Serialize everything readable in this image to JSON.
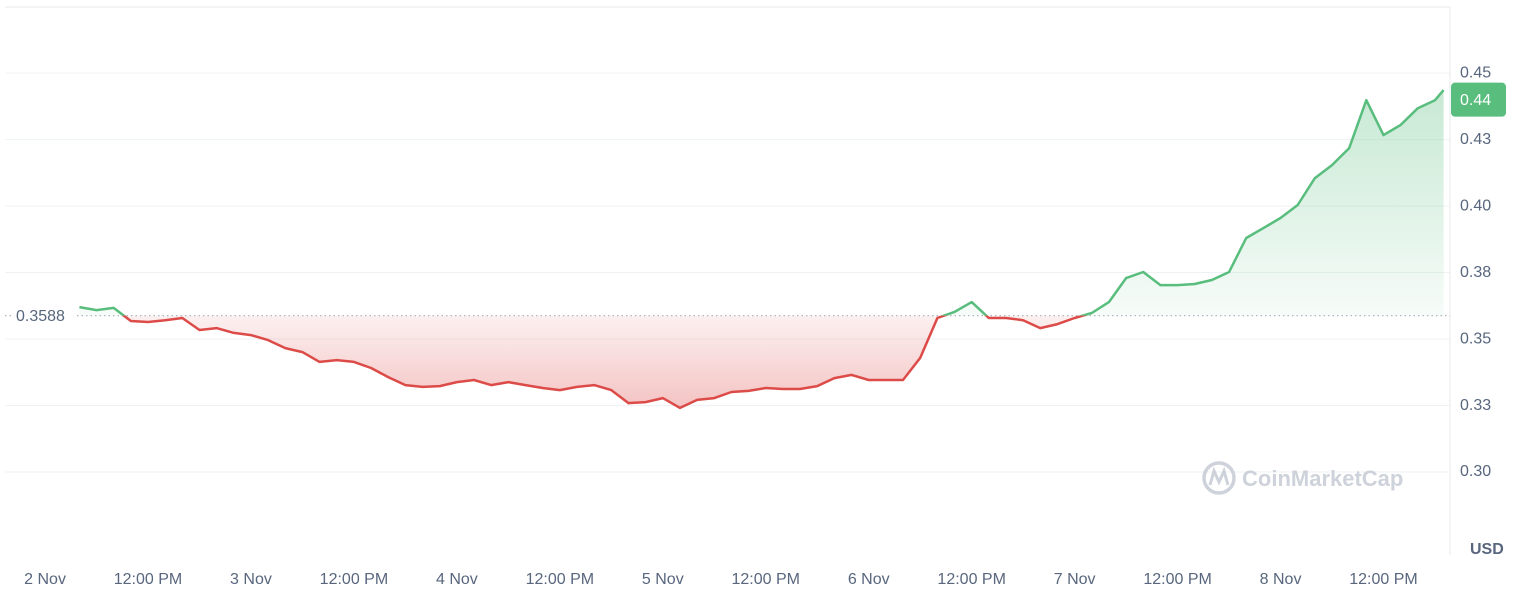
{
  "chart_data": {
    "type": "line",
    "x": [
      "2 Nov 04:00",
      "2 Nov 06:00",
      "2 Nov 08:00",
      "2 Nov 10:00",
      "2 Nov 12:00",
      "2 Nov 14:00",
      "2 Nov 16:00",
      "2 Nov 18:00",
      "2 Nov 20:00",
      "2 Nov 22:00",
      "3 Nov 00:00",
      "3 Nov 02:00",
      "3 Nov 04:00",
      "3 Nov 06:00",
      "3 Nov 08:00",
      "3 Nov 10:00",
      "3 Nov 12:00",
      "3 Nov 14:00",
      "3 Nov 16:00",
      "3 Nov 18:00",
      "3 Nov 20:00",
      "3 Nov 22:00",
      "4 Nov 00:00",
      "4 Nov 02:00",
      "4 Nov 04:00",
      "4 Nov 06:00",
      "4 Nov 08:00",
      "4 Nov 10:00",
      "4 Nov 12:00",
      "4 Nov 14:00",
      "4 Nov 16:00",
      "4 Nov 18:00",
      "4 Nov 20:00",
      "4 Nov 22:00",
      "5 Nov 00:00",
      "5 Nov 02:00",
      "5 Nov 04:00",
      "5 Nov 06:00",
      "5 Nov 08:00",
      "5 Nov 10:00",
      "5 Nov 12:00",
      "5 Nov 14:00",
      "5 Nov 16:00",
      "5 Nov 18:00",
      "5 Nov 20:00",
      "5 Nov 22:00",
      "6 Nov 00:00",
      "6 Nov 02:00",
      "6 Nov 04:00",
      "6 Nov 06:00",
      "6 Nov 08:00",
      "6 Nov 10:00",
      "6 Nov 12:00",
      "6 Nov 14:00",
      "6 Nov 16:00",
      "6 Nov 18:00",
      "6 Nov 20:00",
      "6 Nov 22:00",
      "7 Nov 00:00",
      "7 Nov 02:00",
      "7 Nov 04:00",
      "7 Nov 06:00",
      "7 Nov 08:00",
      "7 Nov 10:00",
      "7 Nov 12:00",
      "7 Nov 14:00",
      "7 Nov 16:00",
      "7 Nov 18:00",
      "7 Nov 20:00",
      "7 Nov 22:00",
      "8 Nov 00:00",
      "8 Nov 02:00",
      "8 Nov 04:00",
      "8 Nov 06:00",
      "8 Nov 08:00",
      "8 Nov 10:00",
      "8 Nov 12:00",
      "8 Nov 14:00",
      "8 Nov 16:00",
      "8 Nov 18:00",
      "8 Nov 19:00"
    ],
    "values": [
      0.362,
      0.3609,
      0.3617,
      0.3568,
      0.3564,
      0.3571,
      0.3579,
      0.3534,
      0.3541,
      0.3523,
      0.3515,
      0.3496,
      0.3466,
      0.3451,
      0.3414,
      0.3421,
      0.3414,
      0.3391,
      0.3357,
      0.3327,
      0.332,
      0.3323,
      0.3338,
      0.3346,
      0.3327,
      0.3338,
      0.3327,
      0.3316,
      0.3308,
      0.332,
      0.3327,
      0.3308,
      0.3259,
      0.3263,
      0.3278,
      0.3241,
      0.3271,
      0.3278,
      0.3301,
      0.3305,
      0.3316,
      0.3312,
      0.3312,
      0.3323,
      0.3353,
      0.3365,
      0.3346,
      0.3346,
      0.3346,
      0.3429,
      0.3579,
      0.3602,
      0.3639,
      0.3579,
      0.3579,
      0.3571,
      0.3541,
      0.3556,
      0.3579,
      0.3598,
      0.3639,
      0.3729,
      0.3752,
      0.3703,
      0.3703,
      0.3707,
      0.3722,
      0.3752,
      0.388,
      0.3917,
      0.3955,
      0.4004,
      0.4105,
      0.4154,
      0.4218,
      0.4398,
      0.4267,
      0.4305,
      0.4368,
      0.4398,
      0.4436
    ],
    "xlim": [
      "1 Nov 19:20",
      "8 Nov 19:45"
    ],
    "xticks": [
      {
        "value": "2 Nov 00:00",
        "label": "2 Nov"
      },
      {
        "value": "2 Nov 12:00",
        "label": "12:00 PM"
      },
      {
        "value": "3 Nov 00:00",
        "label": "3 Nov"
      },
      {
        "value": "3 Nov 12:00",
        "label": "12:00 PM"
      },
      {
        "value": "4 Nov 00:00",
        "label": "4 Nov"
      },
      {
        "value": "4 Nov 12:00",
        "label": "12:00 PM"
      },
      {
        "value": "5 Nov 00:00",
        "label": "5 Nov"
      },
      {
        "value": "5 Nov 12:00",
        "label": "12:00 PM"
      },
      {
        "value": "6 Nov 00:00",
        "label": "6 Nov"
      },
      {
        "value": "6 Nov 12:00",
        "label": "12:00 PM"
      },
      {
        "value": "7 Nov 00:00",
        "label": "7 Nov"
      },
      {
        "value": "7 Nov 12:00",
        "label": "12:00 PM"
      },
      {
        "value": "8 Nov 00:00",
        "label": "8 Nov"
      },
      {
        "value": "8 Nov 12:00",
        "label": "12:00 PM"
      }
    ],
    "ylim": [
      0.2688,
      0.4756
    ],
    "yticks": [
      {
        "value": 0.3,
        "label": "0.30"
      },
      {
        "value": 0.325,
        "label": "0.33"
      },
      {
        "value": 0.35,
        "label": "0.35"
      },
      {
        "value": 0.375,
        "label": "0.38"
      },
      {
        "value": 0.4,
        "label": "0.40"
      },
      {
        "value": 0.425,
        "label": "0.43"
      },
      {
        "value": 0.45,
        "label": "0.45"
      }
    ],
    "grid": true,
    "baseline": 0.3588,
    "last_price": 0.44,
    "up_color": "#58bd7d",
    "down_color": "#dc4b48",
    "currency": "USD",
    "watermark": "CoinMarketCap"
  }
}
